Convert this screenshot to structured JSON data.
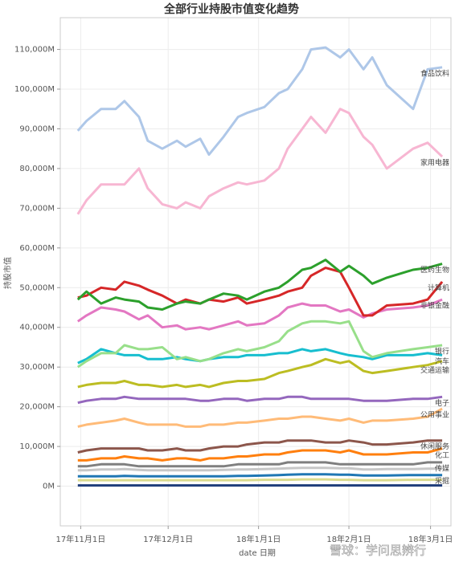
{
  "chart_data": {
    "type": "line",
    "title": "全部行业持股市值变化趋势",
    "x_label": "date 日期",
    "y_label": "持股市值",
    "watermark": "雪球：学问思辨行",
    "x": [
      "2017-10-31",
      "2017-11-03",
      "2017-11-08",
      "2017-11-13",
      "2017-11-16",
      "2017-11-21",
      "2017-11-24",
      "2017-11-29",
      "2017-12-04",
      "2017-12-07",
      "2017-12-12",
      "2017-12-15",
      "2017-12-20",
      "2017-12-25",
      "2017-12-28",
      "2018-01-03",
      "2018-01-08",
      "2018-01-11",
      "2018-01-16",
      "2018-01-19",
      "2018-01-24",
      "2018-01-29",
      "2018-02-01",
      "2018-02-06",
      "2018-02-09",
      "2018-02-14",
      "2018-02-23",
      "2018-02-28",
      "2018-03-05"
    ],
    "xlim": [
      "2017-10-25",
      "2018-03-08"
    ],
    "xticks": [
      {
        "value": "2017-11-01",
        "label": "17年11月1日"
      },
      {
        "value": "2017-12-01",
        "label": "17年12月1日"
      },
      {
        "value": "2018-01-01",
        "label": "18年1月1日"
      },
      {
        "value": "2018-02-01",
        "label": "18年2月1日"
      },
      {
        "value": "2018-03-01",
        "label": "18年3月1日"
      }
    ],
    "ylim": [
      -10000,
      118000
    ],
    "yticks": [
      {
        "value": 0,
        "label": "0M"
      },
      {
        "value": 10000,
        "label": "10,000M"
      },
      {
        "value": 20000,
        "label": "20,000M"
      },
      {
        "value": 30000,
        "label": "30,000M"
      },
      {
        "value": 40000,
        "label": "40,000M"
      },
      {
        "value": 50000,
        "label": "50,000M"
      },
      {
        "value": 60000,
        "label": "60,000M"
      },
      {
        "value": 70000,
        "label": "70,000M"
      },
      {
        "value": 80000,
        "label": "80,000M"
      },
      {
        "value": 90000,
        "label": "90,000M"
      },
      {
        "value": 100000,
        "label": "100,000M"
      },
      {
        "value": 110000,
        "label": "110,000M"
      }
    ],
    "grid": true,
    "series": [
      {
        "name": "食品饮料",
        "color": "#aec7e8",
        "values": [
          89500,
          92000,
          95000,
          95000,
          97000,
          93000,
          87000,
          85000,
          87000,
          85500,
          87500,
          83500,
          88000,
          93000,
          94000,
          95500,
          99000,
          100000,
          105000,
          110000,
          110500,
          108000,
          110000,
          105000,
          108000,
          101000,
          95000,
          105000,
          105500
        ]
      },
      {
        "name": "家用电器",
        "color": "#f7b6d2",
        "values": [
          68500,
          72000,
          76000,
          76000,
          76000,
          80000,
          75000,
          71000,
          70000,
          71500,
          70000,
          73000,
          75000,
          76500,
          76000,
          77000,
          80000,
          85000,
          90000,
          93000,
          89000,
          95000,
          94000,
          88000,
          86000,
          80000,
          85000,
          86500,
          83000
        ]
      },
      {
        "name": "医药生物",
        "color": "#2ca02c",
        "values": [
          47000,
          49000,
          46000,
          47500,
          47000,
          46500,
          45000,
          44500,
          46000,
          46500,
          46000,
          47000,
          48500,
          48000,
          47000,
          49000,
          50000,
          51500,
          54500,
          55000,
          57000,
          54000,
          55500,
          53000,
          51000,
          52500,
          54500,
          55000,
          56000
        ]
      },
      {
        "name": "计算机",
        "color": "#d62728",
        "values": [
          47500,
          48000,
          50000,
          49500,
          51500,
          50500,
          49500,
          48000,
          46000,
          47000,
          46000,
          47000,
          46500,
          47500,
          46000,
          47000,
          48000,
          49000,
          50000,
          53000,
          55000,
          54000,
          50000,
          43000,
          43000,
          45500,
          46000,
          47000,
          51500
        ]
      },
      {
        "name": "非银金融",
        "color": "#e377c2",
        "values": [
          41500,
          43000,
          45000,
          44500,
          44000,
          42000,
          43000,
          40000,
          40500,
          39500,
          40000,
          39500,
          40500,
          41500,
          40500,
          41000,
          43000,
          45000,
          46000,
          45500,
          45500,
          44000,
          44500,
          42500,
          43500,
          44500,
          45000,
          45500,
          47000
        ]
      },
      {
        "name": "银行",
        "color": "#98df8a",
        "values": [
          30000,
          31500,
          33500,
          33500,
          35500,
          34500,
          34500,
          35000,
          32000,
          32500,
          31500,
          32000,
          33500,
          34500,
          34000,
          35000,
          36500,
          39000,
          41000,
          41500,
          41500,
          41000,
          41500,
          34000,
          32500,
          33500,
          34500,
          35000,
          35500
        ]
      },
      {
        "name": "汽车",
        "color": "#17becf",
        "values": [
          31000,
          32000,
          34500,
          33500,
          33000,
          33000,
          32000,
          32000,
          32500,
          32000,
          31500,
          32000,
          32500,
          32500,
          33000,
          33000,
          33500,
          33500,
          34500,
          34000,
          34500,
          33500,
          33000,
          32500,
          32000,
          33000,
          33000,
          33500,
          33000
        ]
      },
      {
        "name": "交通运输",
        "color": "#bcbd22",
        "values": [
          25000,
          25500,
          26000,
          26000,
          26500,
          25500,
          25500,
          25000,
          25500,
          25000,
          25500,
          25000,
          26000,
          26500,
          26500,
          27000,
          28500,
          29000,
          30000,
          30500,
          32000,
          31000,
          31500,
          29000,
          28500,
          29000,
          30000,
          30500,
          31500
        ]
      },
      {
        "name": "公用事业",
        "color": "#ffbb78",
        "values": [
          15000,
          15500,
          16000,
          16500,
          17000,
          16000,
          15500,
          15500,
          15500,
          15000,
          15000,
          15500,
          15500,
          16000,
          16000,
          16500,
          17000,
          17000,
          17500,
          17500,
          17000,
          16500,
          17000,
          16000,
          16500,
          16500,
          17000,
          17500,
          19500
        ]
      },
      {
        "name": "电子",
        "color": "#9467bd",
        "values": [
          21000,
          21500,
          22000,
          22000,
          22500,
          22000,
          22000,
          22000,
          22000,
          22000,
          21500,
          21500,
          22000,
          22000,
          21500,
          22000,
          22000,
          22500,
          22500,
          22000,
          22000,
          22000,
          22000,
          21500,
          21500,
          21500,
          22000,
          22000,
          22500
        ]
      },
      {
        "name": "休闲服务",
        "color": "#8c564b",
        "values": [
          8500,
          9000,
          9500,
          9500,
          9500,
          9500,
          9000,
          9000,
          9500,
          9000,
          9000,
          9500,
          10000,
          10000,
          10500,
          11000,
          11000,
          11500,
          11500,
          11500,
          11000,
          11000,
          11500,
          11000,
          10500,
          10500,
          11000,
          11500,
          11500
        ]
      },
      {
        "name": "化工",
        "color": "#ff7f0e",
        "values": [
          6500,
          6500,
          7000,
          7000,
          7500,
          7000,
          7000,
          6500,
          7000,
          7000,
          6500,
          7000,
          7000,
          7500,
          7500,
          8000,
          8000,
          8500,
          9000,
          9000,
          9000,
          8500,
          9000,
          8000,
          8000,
          8000,
          8500,
          8500,
          9500
        ]
      },
      {
        "name": "传媒",
        "color": "#7f7f7f",
        "values": [
          5000,
          5000,
          5500,
          5500,
          5500,
          5000,
          5000,
          5000,
          5000,
          5000,
          5000,
          5000,
          5000,
          5500,
          5500,
          5500,
          5500,
          6000,
          6000,
          6000,
          6000,
          5500,
          5500,
          5500,
          5500,
          5500,
          5500,
          6000,
          6000
        ]
      },
      {
        "name": "采掘",
        "color": "#1f77b4",
        "values": [
          2500,
          2500,
          2500,
          2500,
          2600,
          2500,
          2500,
          2500,
          2500,
          2500,
          2500,
          2500,
          2500,
          2600,
          2600,
          2700,
          2800,
          2900,
          3000,
          3000,
          3000,
          2900,
          2900,
          2700,
          2700,
          2700,
          2800,
          2800,
          2800
        ]
      },
      {
        "color": "#c7c7c7",
        "values": [
          4000,
          4000,
          4200,
          4200,
          4300,
          4100,
          4000,
          4000,
          4000,
          4000,
          4000,
          4000,
          4100,
          4200,
          4200,
          4300,
          4400,
          4500,
          4600,
          4600,
          4600,
          4500,
          4500,
          4200,
          4200,
          4300,
          4300,
          4400,
          4400
        ]
      },
      {
        "color": "#dbdb8d",
        "values": [
          1500,
          1500,
          1500,
          1500,
          1500,
          1500,
          1500,
          1500,
          1500,
          1500,
          1500,
          1500,
          1500,
          1500,
          1500,
          1600,
          1600,
          1600,
          1700,
          1700,
          1700,
          1600,
          1600,
          1500,
          1500,
          1500,
          1600,
          1600,
          1600
        ]
      },
      {
        "color": "#1f3d7a",
        "values": [
          200,
          200,
          200,
          200,
          200,
          200,
          200,
          200,
          200,
          200,
          200,
          200,
          200,
          200,
          200,
          200,
          200,
          200,
          200,
          200,
          200,
          200,
          200,
          200,
          200,
          200,
          200,
          200,
          200
        ]
      }
    ]
  }
}
